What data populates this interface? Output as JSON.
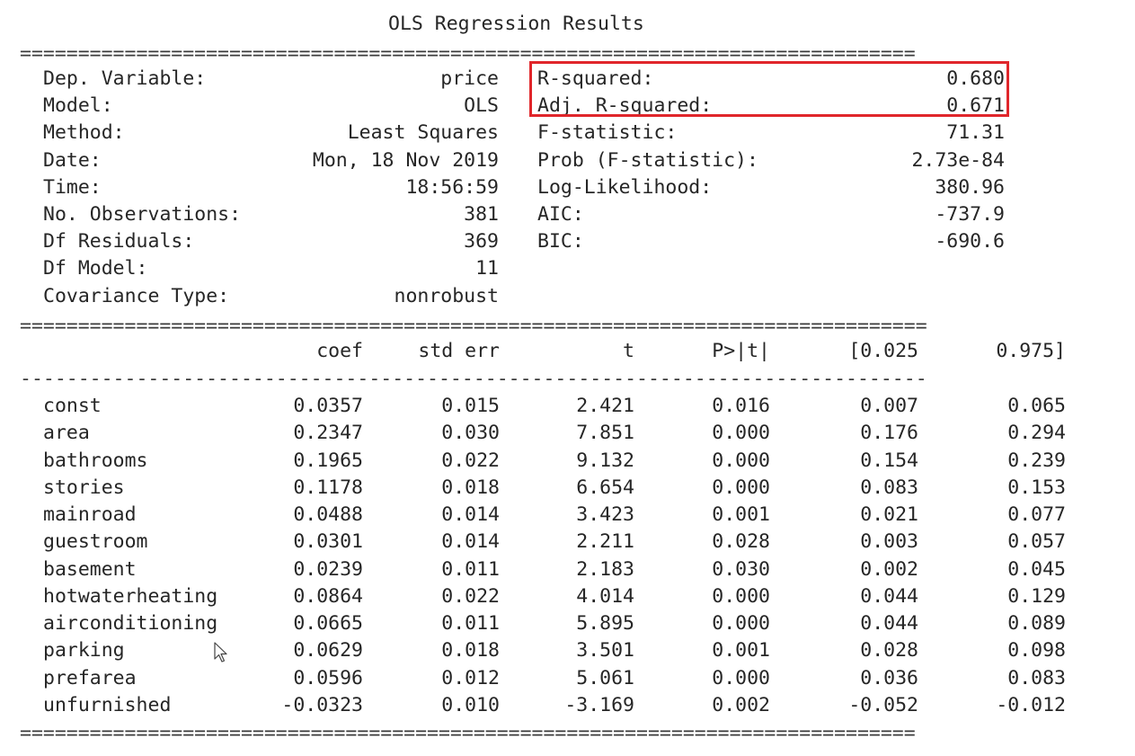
{
  "title": "OLS Regression Results",
  "rules": {
    "double_short": "=============================================================================",
    "double_long": "==============================================================================",
    "single": "------------------------------------------------------------------------------"
  },
  "summary_left": [
    {
      "label": "Dep. Variable:",
      "value": "price"
    },
    {
      "label": "Model:",
      "value": "OLS"
    },
    {
      "label": "Method:",
      "value": "Least Squares"
    },
    {
      "label": "Date:",
      "value": "Mon, 18 Nov 2019"
    },
    {
      "label": "Time:",
      "value": "18:56:59"
    },
    {
      "label": "No. Observations:",
      "value": "381"
    },
    {
      "label": "Df Residuals:",
      "value": "369"
    },
    {
      "label": "Df Model:",
      "value": "11"
    },
    {
      "label": "Covariance Type:",
      "value": "nonrobust"
    }
  ],
  "summary_right": [
    {
      "label": "R-squared:",
      "value": "0.680"
    },
    {
      "label": "Adj. R-squared:",
      "value": "0.671"
    },
    {
      "label": "F-statistic:",
      "value": "71.31"
    },
    {
      "label": "Prob (F-statistic):",
      "value": "2.73e-84"
    },
    {
      "label": "Log-Likelihood:",
      "value": "380.96"
    },
    {
      "label": "AIC:",
      "value": "-737.9"
    },
    {
      "label": "BIC:",
      "value": "-690.6"
    }
  ],
  "highlight_color": "#e0262b",
  "coef_table": {
    "columns": [
      "coef",
      "std err",
      "t",
      "P>|t|",
      "[0.025",
      "0.975]"
    ],
    "rows": [
      {
        "name": "const",
        "values": [
          "0.0357",
          "0.015",
          "2.421",
          "0.016",
          "0.007",
          "0.065"
        ]
      },
      {
        "name": "area",
        "values": [
          "0.2347",
          "0.030",
          "7.851",
          "0.000",
          "0.176",
          "0.294"
        ]
      },
      {
        "name": "bathrooms",
        "values": [
          "0.1965",
          "0.022",
          "9.132",
          "0.000",
          "0.154",
          "0.239"
        ]
      },
      {
        "name": "stories",
        "values": [
          "0.1178",
          "0.018",
          "6.654",
          "0.000",
          "0.083",
          "0.153"
        ]
      },
      {
        "name": "mainroad",
        "values": [
          "0.0488",
          "0.014",
          "3.423",
          "0.001",
          "0.021",
          "0.077"
        ]
      },
      {
        "name": "guestroom",
        "values": [
          "0.0301",
          "0.014",
          "2.211",
          "0.028",
          "0.003",
          "0.057"
        ]
      },
      {
        "name": "basement",
        "values": [
          "0.0239",
          "0.011",
          "2.183",
          "0.030",
          "0.002",
          "0.045"
        ]
      },
      {
        "name": "hotwaterheating",
        "values": [
          "0.0864",
          "0.022",
          "4.014",
          "0.000",
          "0.044",
          "0.129"
        ]
      },
      {
        "name": "airconditioning",
        "values": [
          "0.0665",
          "0.011",
          "5.895",
          "0.000",
          "0.044",
          "0.089"
        ]
      },
      {
        "name": "parking",
        "values": [
          "0.0629",
          "0.018",
          "3.501",
          "0.001",
          "0.028",
          "0.098"
        ]
      },
      {
        "name": "prefarea",
        "values": [
          "0.0596",
          "0.012",
          "5.061",
          "0.000",
          "0.036",
          "0.083"
        ]
      },
      {
        "name": "unfurnished",
        "values": [
          "-0.0323",
          "0.010",
          "-3.169",
          "0.002",
          "-0.052",
          "-0.012"
        ]
      }
    ]
  }
}
